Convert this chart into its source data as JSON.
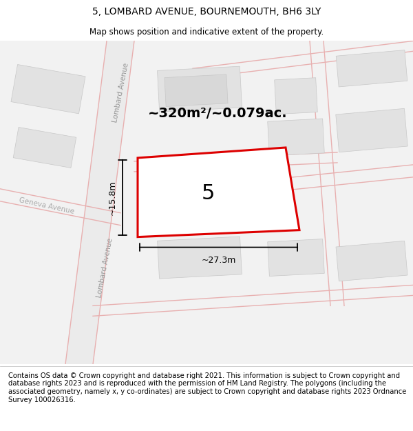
{
  "title": "5, LOMBARD AVENUE, BOURNEMOUTH, BH6 3LY",
  "subtitle": "Map shows position and indicative extent of the property.",
  "footer": "Contains OS data © Crown copyright and database right 2021. This information is subject to Crown copyright and database rights 2023 and is reproduced with the permission of HM Land Registry. The polygons (including the associated geometry, namely x, y co-ordinates) are subject to Crown copyright and database rights 2023 Ordnance Survey 100026316.",
  "area_text": "~320m²/~0.079ac.",
  "property_number": "5",
  "width_label": "~27.3m",
  "height_label": "~15.8m",
  "map_bg": "#f2f2f2",
  "building_color": "#e2e2e2",
  "building_edge": "#c8c8c8",
  "road_line": "#e8b0b0",
  "plot_edge": "#dd0000",
  "plot_fill": "#ffffff",
  "title_fontsize": 10,
  "subtitle_fontsize": 8.5,
  "footer_fontsize": 7.2,
  "area_fontsize": 14,
  "number_fontsize": 22,
  "dim_fontsize": 9,
  "road_label_fontsize": 7.5
}
